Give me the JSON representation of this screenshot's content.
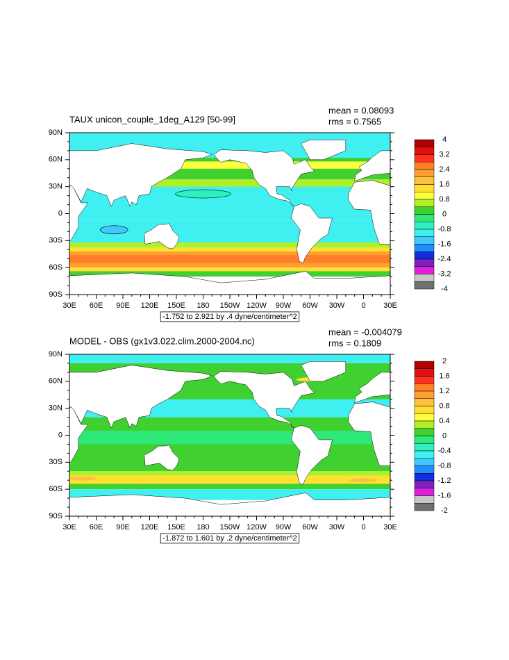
{
  "panels": [
    {
      "title": "TAUX unicon_couple_1deg_A129 [50-99]",
      "mean": "mean = 0.08093",
      "rms": "rms = 0.7565",
      "footnote": "-1.752 to 2.921 by .4 dyne/centimeter^2",
      "colorbar": {
        "labels": [
          "4",
          "3.2",
          "2.4",
          "1.6",
          "0.8",
          "0",
          "-0.8",
          "-1.6",
          "-2.4",
          "-3.2",
          "-4"
        ],
        "colors": [
          "#b00000",
          "#e01010",
          "#ff3020",
          "#ff8028",
          "#ffa030",
          "#ffc040",
          "#ffe030",
          "#ffff40",
          "#b0f028",
          "#40d030",
          "#30e878",
          "#30f0c0",
          "#40f0f0",
          "#40c8ff",
          "#2090ff",
          "#1030e0",
          "#8020c0",
          "#e020e0",
          "#c8c8c8",
          "#707070"
        ]
      }
    },
    {
      "title": "MODEL - OBS (gx1v3.022.clim.2000-2004.nc)",
      "mean": "mean = -0.004079",
      "rms": "rms = 0.1809",
      "footnote": "-1.872 to 1.601 by .2 dyne/centimeter^2",
      "colorbar": {
        "labels": [
          "2",
          "1.6",
          "1.2",
          "0.8",
          "0.4",
          "0",
          "-0.4",
          "-0.8",
          "-1.2",
          "-1.6",
          "-2"
        ],
        "colors": [
          "#b00000",
          "#e01010",
          "#ff3020",
          "#ff8028",
          "#ffa030",
          "#ffc040",
          "#ffe030",
          "#ffff40",
          "#b0f028",
          "#40d030",
          "#30e878",
          "#30f0c0",
          "#40f0f0",
          "#40c8ff",
          "#2090ff",
          "#1030e0",
          "#8020c0",
          "#e020e0",
          "#c8c8c8",
          "#707070"
        ]
      }
    }
  ],
  "lat_labels": [
    "90N",
    "60N",
    "30N",
    "0",
    "30S",
    "60S",
    "90S"
  ],
  "lon_labels": [
    "30E",
    "60E",
    "90E",
    "120E",
    "150E",
    "180",
    "150W",
    "120W",
    "90W",
    "60W",
    "30W",
    "0",
    "30E"
  ]
}
